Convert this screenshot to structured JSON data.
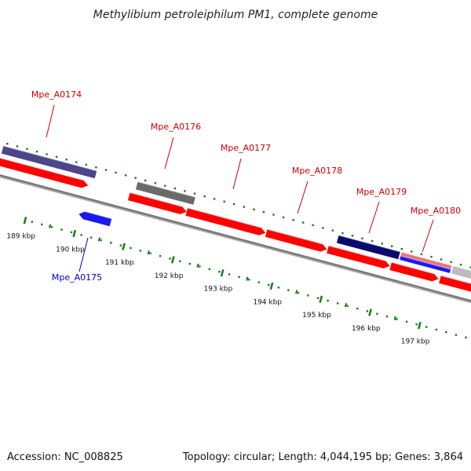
{
  "title": "Methylibium petroleiphilum PM1, complete genome",
  "footer": {
    "accession": "Accession: NC_008825",
    "summary": "Topology: circular; Length: 4,044,195 bp; Genes: 3,864"
  },
  "colors": {
    "forward_label": "#cc0000",
    "reverse_label": "#0000cc",
    "tick": "#1a7a1a",
    "backbone": "#777777",
    "red_gene": "#ff0000",
    "blue_gene": "#1a1aee",
    "navy_gene": "#0a0a6e",
    "purple_gene": "#4c458a",
    "gray_gene": "#6a6a6a",
    "light_gray_gene": "#bdbdbd",
    "pink_gene": "#e87878"
  },
  "genome_map": {
    "ticks": [
      {
        "kbp": 189,
        "label": "189 kbp"
      },
      {
        "kbp": 190,
        "label": "190 kbp"
      },
      {
        "kbp": 191,
        "label": "191 kbp"
      },
      {
        "kbp": 192,
        "label": "192 kbp"
      },
      {
        "kbp": 193,
        "label": "193 kbp"
      },
      {
        "kbp": 194,
        "label": "194 kbp"
      },
      {
        "kbp": 195,
        "label": "195 kbp"
      },
      {
        "kbp": 196,
        "label": "196 kbp"
      },
      {
        "kbp": 197,
        "label": "197 kbp"
      }
    ],
    "genes": [
      {
        "id": "Mpe_A0174",
        "label": "Mpe_A0174",
        "strand": "+"
      },
      {
        "id": "Mpe_A0175",
        "label": "Mpe_A0175",
        "strand": "-"
      },
      {
        "id": "Mpe_A0176",
        "label": "Mpe_A0176",
        "strand": "+"
      },
      {
        "id": "Mpe_A0177",
        "label": "Mpe_A0177",
        "strand": "+"
      },
      {
        "id": "Mpe_A0178",
        "label": "Mpe_A0178",
        "strand": "+"
      },
      {
        "id": "Mpe_A0179",
        "label": "Mpe_A0179",
        "strand": "+"
      },
      {
        "id": "Mpe_A0180",
        "label": "Mpe_A0180",
        "strand": "+"
      }
    ]
  }
}
